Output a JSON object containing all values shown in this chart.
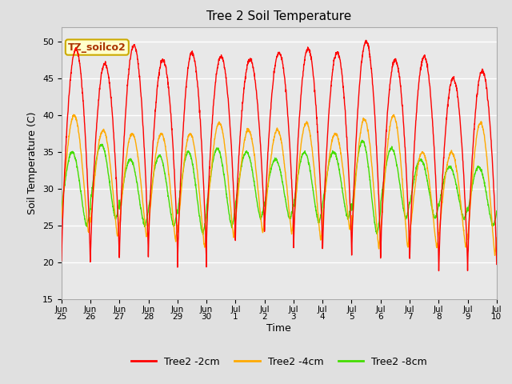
{
  "title": "Tree 2 Soil Temperature",
  "xlabel": "Time",
  "ylabel": "Soil Temperature (C)",
  "ylim": [
    15,
    52
  ],
  "yticks": [
    15,
    20,
    25,
    30,
    35,
    40,
    45,
    50
  ],
  "annotation_text": "TZ_soilco2",
  "annotation_box_color": "#ffffcc",
  "annotation_box_edge": "#ccaa00",
  "line_colors": {
    "2cm": "#ff0000",
    "4cm": "#ffaa00",
    "8cm": "#44dd00"
  },
  "legend_labels": [
    "Tree2 -2cm",
    "Tree2 -4cm",
    "Tree2 -8cm"
  ],
  "x_tick_labels": [
    "Jun\n25",
    "Jun\n26",
    "Jun\n27",
    "Jun\n28",
    "Jun\n29",
    "Jun\n30",
    "Jul\n1",
    "Jul\n2",
    "Jul\n3",
    "Jul\n4",
    "Jul\n5",
    "Jul\n6",
    "Jul\n7",
    "Jul\n8",
    "Jul\n9",
    "Jul\n10"
  ],
  "fig_bg_color": "#e0e0e0",
  "plot_bg_color": "#e8e8e8",
  "grid_color": "#ffffff",
  "linewidth": 1.0,
  "n_days": 15,
  "pts_per_day": 144,
  "daily_peaks_2cm": [
    49,
    47,
    49.5,
    47.5,
    48.5,
    48,
    47.5,
    48.5,
    49,
    48.5,
    50,
    47.5,
    48,
    45,
    46
  ],
  "daily_troughs_2cm": [
    20,
    20.5,
    21,
    22,
    19.5,
    23,
    24.5,
    24.5,
    22,
    22,
    21,
    21,
    20.5,
    19,
    20
  ],
  "daily_peaks_4cm": [
    40,
    38,
    37.5,
    37.5,
    37.5,
    39,
    38,
    38,
    39,
    37.5,
    39.5,
    40,
    35,
    35,
    39
  ],
  "daily_troughs_4cm": [
    24,
    23.5,
    23.5,
    23,
    22,
    23.5,
    24,
    24,
    23,
    24.5,
    22,
    22,
    22,
    22,
    21
  ],
  "daily_peaks_8cm": [
    35,
    36,
    34,
    34.5,
    35,
    35.5,
    35,
    34,
    35,
    35,
    36.5,
    35.5,
    34,
    33,
    33
  ],
  "daily_troughs_8cm": [
    25,
    26,
    25,
    25,
    24,
    25,
    26,
    26,
    25.5,
    26,
    24,
    26,
    26,
    26,
    25
  ]
}
